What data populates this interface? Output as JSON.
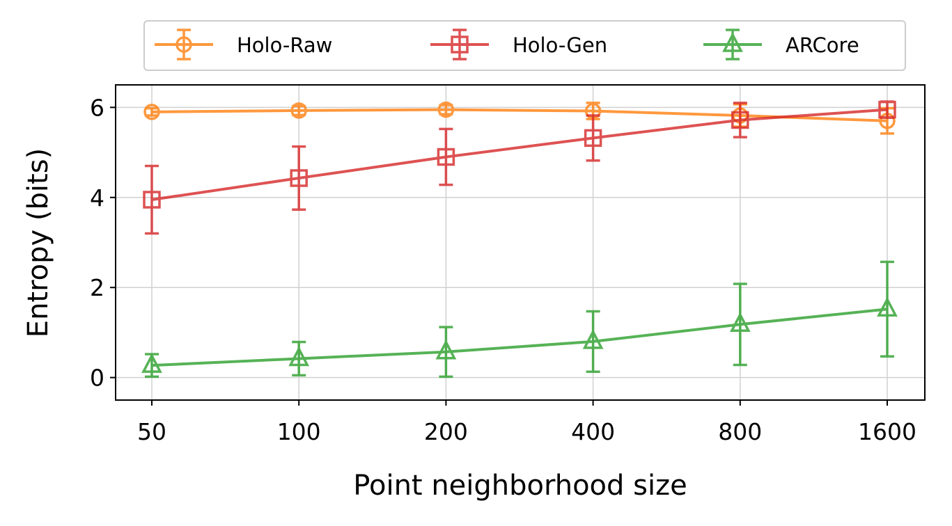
{
  "chart_data": {
    "type": "line",
    "x": [
      "50",
      "100",
      "200",
      "400",
      "800",
      "1600"
    ],
    "xlabel": "Point neighborhood size",
    "ylabel": "Entropy (bits)",
    "ylim": [
      -0.5,
      6.5
    ],
    "yticks": [
      "0",
      "2",
      "4",
      "6"
    ],
    "grid": true,
    "legend_position": "top, outside plot, 3 columns",
    "series": [
      {
        "name": "Holo-Raw",
        "color": "#ff7f0e",
        "marker": "circle",
        "values": [
          5.9,
          5.93,
          5.95,
          5.92,
          5.82,
          5.7
        ],
        "errors": [
          0.08,
          0.1,
          0.1,
          0.18,
          0.25,
          0.28
        ]
      },
      {
        "name": "Holo-Gen",
        "color": "#d62728",
        "marker": "square",
        "values": [
          3.95,
          4.43,
          4.9,
          5.32,
          5.72,
          5.95
        ],
        "errors": [
          0.75,
          0.7,
          0.62,
          0.5,
          0.38,
          0.18
        ]
      },
      {
        "name": "ARCore",
        "color": "#2ca02c",
        "marker": "triangle",
        "values": [
          0.27,
          0.42,
          0.57,
          0.8,
          1.18,
          1.52
        ],
        "errors": [
          0.25,
          0.37,
          0.55,
          0.67,
          0.9,
          1.05
        ]
      }
    ]
  }
}
